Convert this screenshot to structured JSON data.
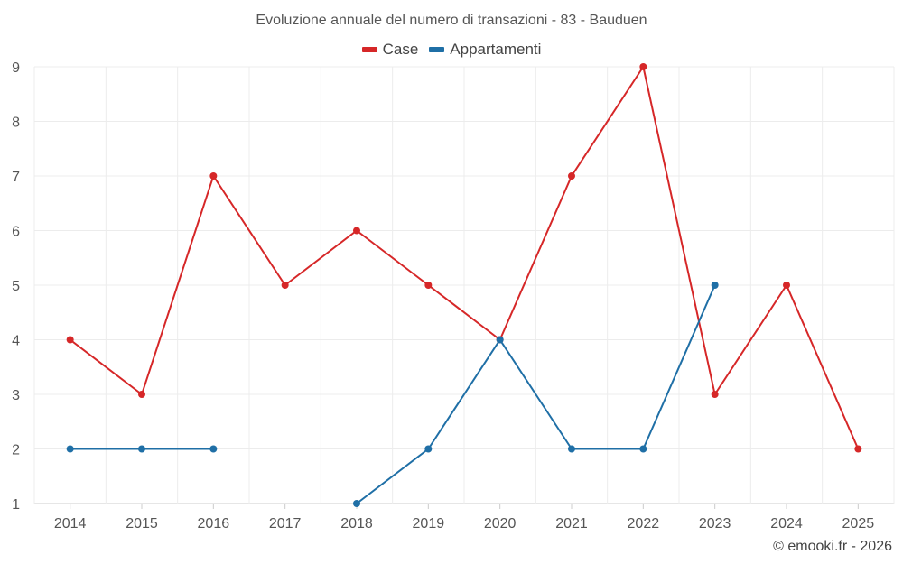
{
  "chart_data": {
    "type": "line",
    "title": "Evoluzione annuale del numero di transazioni - 83 - Bauduen",
    "xlabel": "",
    "ylabel": "",
    "categories": [
      "2014",
      "2015",
      "2016",
      "2017",
      "2018",
      "2019",
      "2020",
      "2021",
      "2022",
      "2023",
      "2024",
      "2025"
    ],
    "ylim": [
      1,
      9
    ],
    "yticks": [
      1,
      2,
      3,
      4,
      5,
      6,
      7,
      8,
      9
    ],
    "grid": true,
    "legend_position": "top-center",
    "series": [
      {
        "name": "Case",
        "color": "#d62728",
        "values": [
          4,
          3,
          7,
          5,
          6,
          5,
          4,
          7,
          9,
          3,
          5,
          2
        ]
      },
      {
        "name": "Appartamenti",
        "color": "#1f6fa6",
        "values": [
          2,
          2,
          2,
          null,
          1,
          2,
          4,
          2,
          2,
          5,
          null,
          null
        ]
      }
    ]
  },
  "footer": {
    "credit": "© emooki.fr - 2026"
  }
}
